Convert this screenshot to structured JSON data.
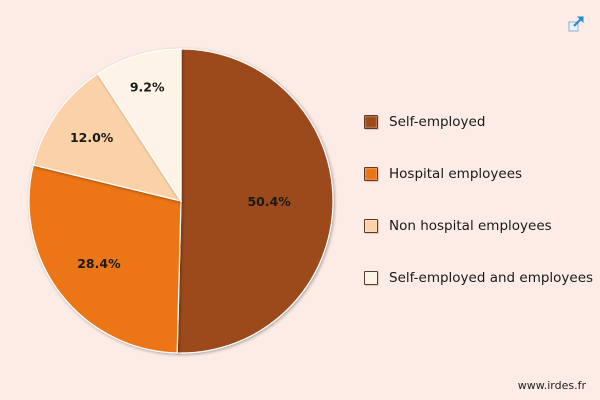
{
  "chart_data": {
    "type": "pie",
    "slices": [
      {
        "label": "Self-employed",
        "value": 50.4,
        "display": "50.4%",
        "color": "#9c4a1a"
      },
      {
        "label": "Hospital employees",
        "value": 28.4,
        "display": "28.4%",
        "color": "#ec7414"
      },
      {
        "label": "Non hospital employees",
        "value": 12.0,
        "display": "12.0%",
        "color": "#fbd2a8"
      },
      {
        "label": "Self-employed and employees",
        "value": 9.2,
        "display": "9.2%",
        "color": "#fdf3e6"
      }
    ],
    "start_angle": "12 o'clock",
    "direction": "clockwise",
    "legend_position": "right"
  },
  "source_text": "www.irdes.fr",
  "expand_icon": "expand-arrow-icon"
}
